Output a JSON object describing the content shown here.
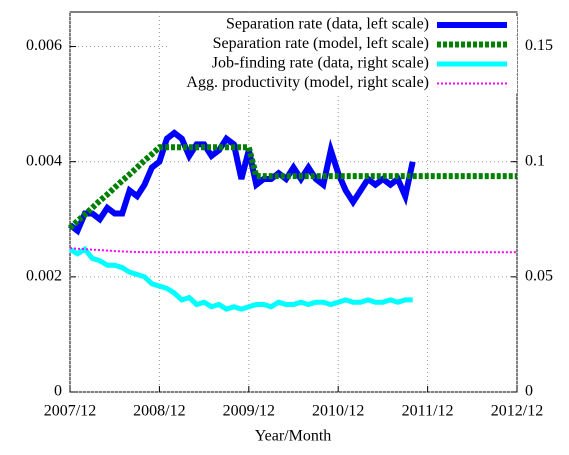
{
  "chart_data": {
    "type": "line",
    "x_label": "Year/Month",
    "categories": [
      "2007/12",
      null,
      null,
      null,
      null,
      null,
      null,
      null,
      null,
      null,
      null,
      null,
      "2008/12",
      null,
      null,
      null,
      null,
      null,
      null,
      null,
      null,
      null,
      null,
      null,
      "2009/12",
      null,
      null,
      null,
      null,
      null,
      null,
      null,
      null,
      null,
      null,
      null,
      "2010/12",
      null,
      null,
      null,
      null,
      null,
      null,
      null,
      null,
      null,
      null,
      null,
      "2011/12",
      null,
      null,
      null,
      null,
      null,
      null,
      null,
      null,
      null,
      null,
      null,
      "2012/12"
    ],
    "ylim": [
      0,
      0.0066
    ],
    "yticks": [
      0,
      0.002,
      0.004,
      0.006
    ],
    "y2lim": [
      0,
      0.165
    ],
    "y2ticks": [
      0,
      0.05,
      0.1,
      0.15
    ],
    "grid": true,
    "legend": "top-right",
    "series": [
      {
        "name": "Separation rate (data, left scale)",
        "color": "#0000ff",
        "style": "solid",
        "width": 6,
        "values": [
          0.0029,
          0.0028,
          0.0031,
          0.0031,
          0.003,
          0.0032,
          0.0031,
          0.0031,
          0.0035,
          0.0034,
          0.0036,
          0.0039,
          0.004,
          0.0044,
          0.0045,
          0.0044,
          0.0041,
          0.0043,
          0.0043,
          0.0041,
          0.0042,
          0.0044,
          0.0043,
          0.0037,
          0.0042,
          0.0036,
          0.0037,
          0.0037,
          0.0038,
          0.0037,
          0.0039,
          0.0037,
          0.0039,
          0.0037,
          0.0036,
          0.0042,
          0.0038,
          0.0035,
          0.0033,
          0.0035,
          0.0037,
          0.0036,
          0.0037,
          0.0036,
          0.0037,
          0.0034,
          0.004,
          null,
          null,
          null,
          null,
          null,
          null,
          null,
          null,
          null,
          null,
          null,
          null,
          null,
          null
        ]
      },
      {
        "name": "Separation rate (model, left scale)",
        "color": "#008000",
        "style": "dashed",
        "width": 6,
        "values": [
          0.00285,
          0.00297,
          0.00308,
          0.0032,
          0.00332,
          0.00343,
          0.00355,
          0.00367,
          0.00378,
          0.0039,
          0.00402,
          0.00413,
          0.00425,
          0.00425,
          0.00425,
          0.00425,
          0.00425,
          0.00425,
          0.00425,
          0.00425,
          0.00425,
          0.00425,
          0.00425,
          0.00425,
          0.00425,
          0.00375,
          0.00375,
          0.00375,
          0.00375,
          0.00375,
          0.00375,
          0.00375,
          0.00375,
          0.00375,
          0.00375,
          0.00375,
          0.00375,
          0.00375,
          0.00375,
          0.00375,
          0.00375,
          0.00375,
          0.00375,
          0.00375,
          0.00375,
          0.00375,
          0.00375,
          0.00375,
          0.00375,
          0.00375,
          0.00375,
          0.00375,
          0.00375,
          0.00375,
          0.00375,
          0.00375,
          0.00375,
          0.00375,
          0.00375,
          0.00375,
          0.00375
        ]
      },
      {
        "name": "Job-finding rate (data, right scale)",
        "color": "#00ffff",
        "style": "solid",
        "width": 5,
        "axis": "y2",
        "values": [
          0.062,
          0.06,
          0.062,
          0.058,
          0.057,
          0.055,
          0.055,
          0.054,
          0.052,
          0.051,
          0.05,
          0.047,
          0.046,
          0.045,
          0.043,
          0.04,
          0.041,
          0.038,
          0.039,
          0.037,
          0.038,
          0.036,
          0.037,
          0.036,
          0.037,
          0.038,
          0.038,
          0.037,
          0.039,
          0.038,
          0.038,
          0.039,
          0.038,
          0.039,
          0.039,
          0.038,
          0.039,
          0.04,
          0.039,
          0.039,
          0.04,
          0.039,
          0.039,
          0.04,
          0.039,
          0.04,
          0.04,
          null,
          null,
          null,
          null,
          null,
          null,
          null,
          null,
          null,
          null,
          null,
          null,
          null,
          null
        ]
      },
      {
        "name": "Agg. productivity (model, right scale)",
        "color": "#ff00ff",
        "style": "dotted",
        "width": 2,
        "axis": "y2",
        "values": [
          0.0625,
          0.0622,
          0.062,
          0.0618,
          0.0616,
          0.0614,
          0.0612,
          0.061,
          0.0609,
          0.0608,
          0.0607,
          0.0607,
          0.0607,
          0.0607,
          0.0607,
          0.0607,
          0.0607,
          0.0607,
          0.0607,
          0.0607,
          0.0607,
          0.0607,
          0.0607,
          0.0607,
          0.0607,
          0.0607,
          0.0607,
          0.0607,
          0.0607,
          0.0607,
          0.0607,
          0.0607,
          0.0607,
          0.0607,
          0.0607,
          0.0607,
          0.0607,
          0.0607,
          0.0607,
          0.0607,
          0.0607,
          0.0607,
          0.0607,
          0.0607,
          0.0607,
          0.0607,
          0.0607,
          0.0607,
          0.0607,
          0.0607,
          0.0607,
          0.0607,
          0.0607,
          0.0607,
          0.0607,
          0.0607,
          0.0607,
          0.0607,
          0.0607,
          0.0607,
          0.0607
        ]
      }
    ]
  }
}
